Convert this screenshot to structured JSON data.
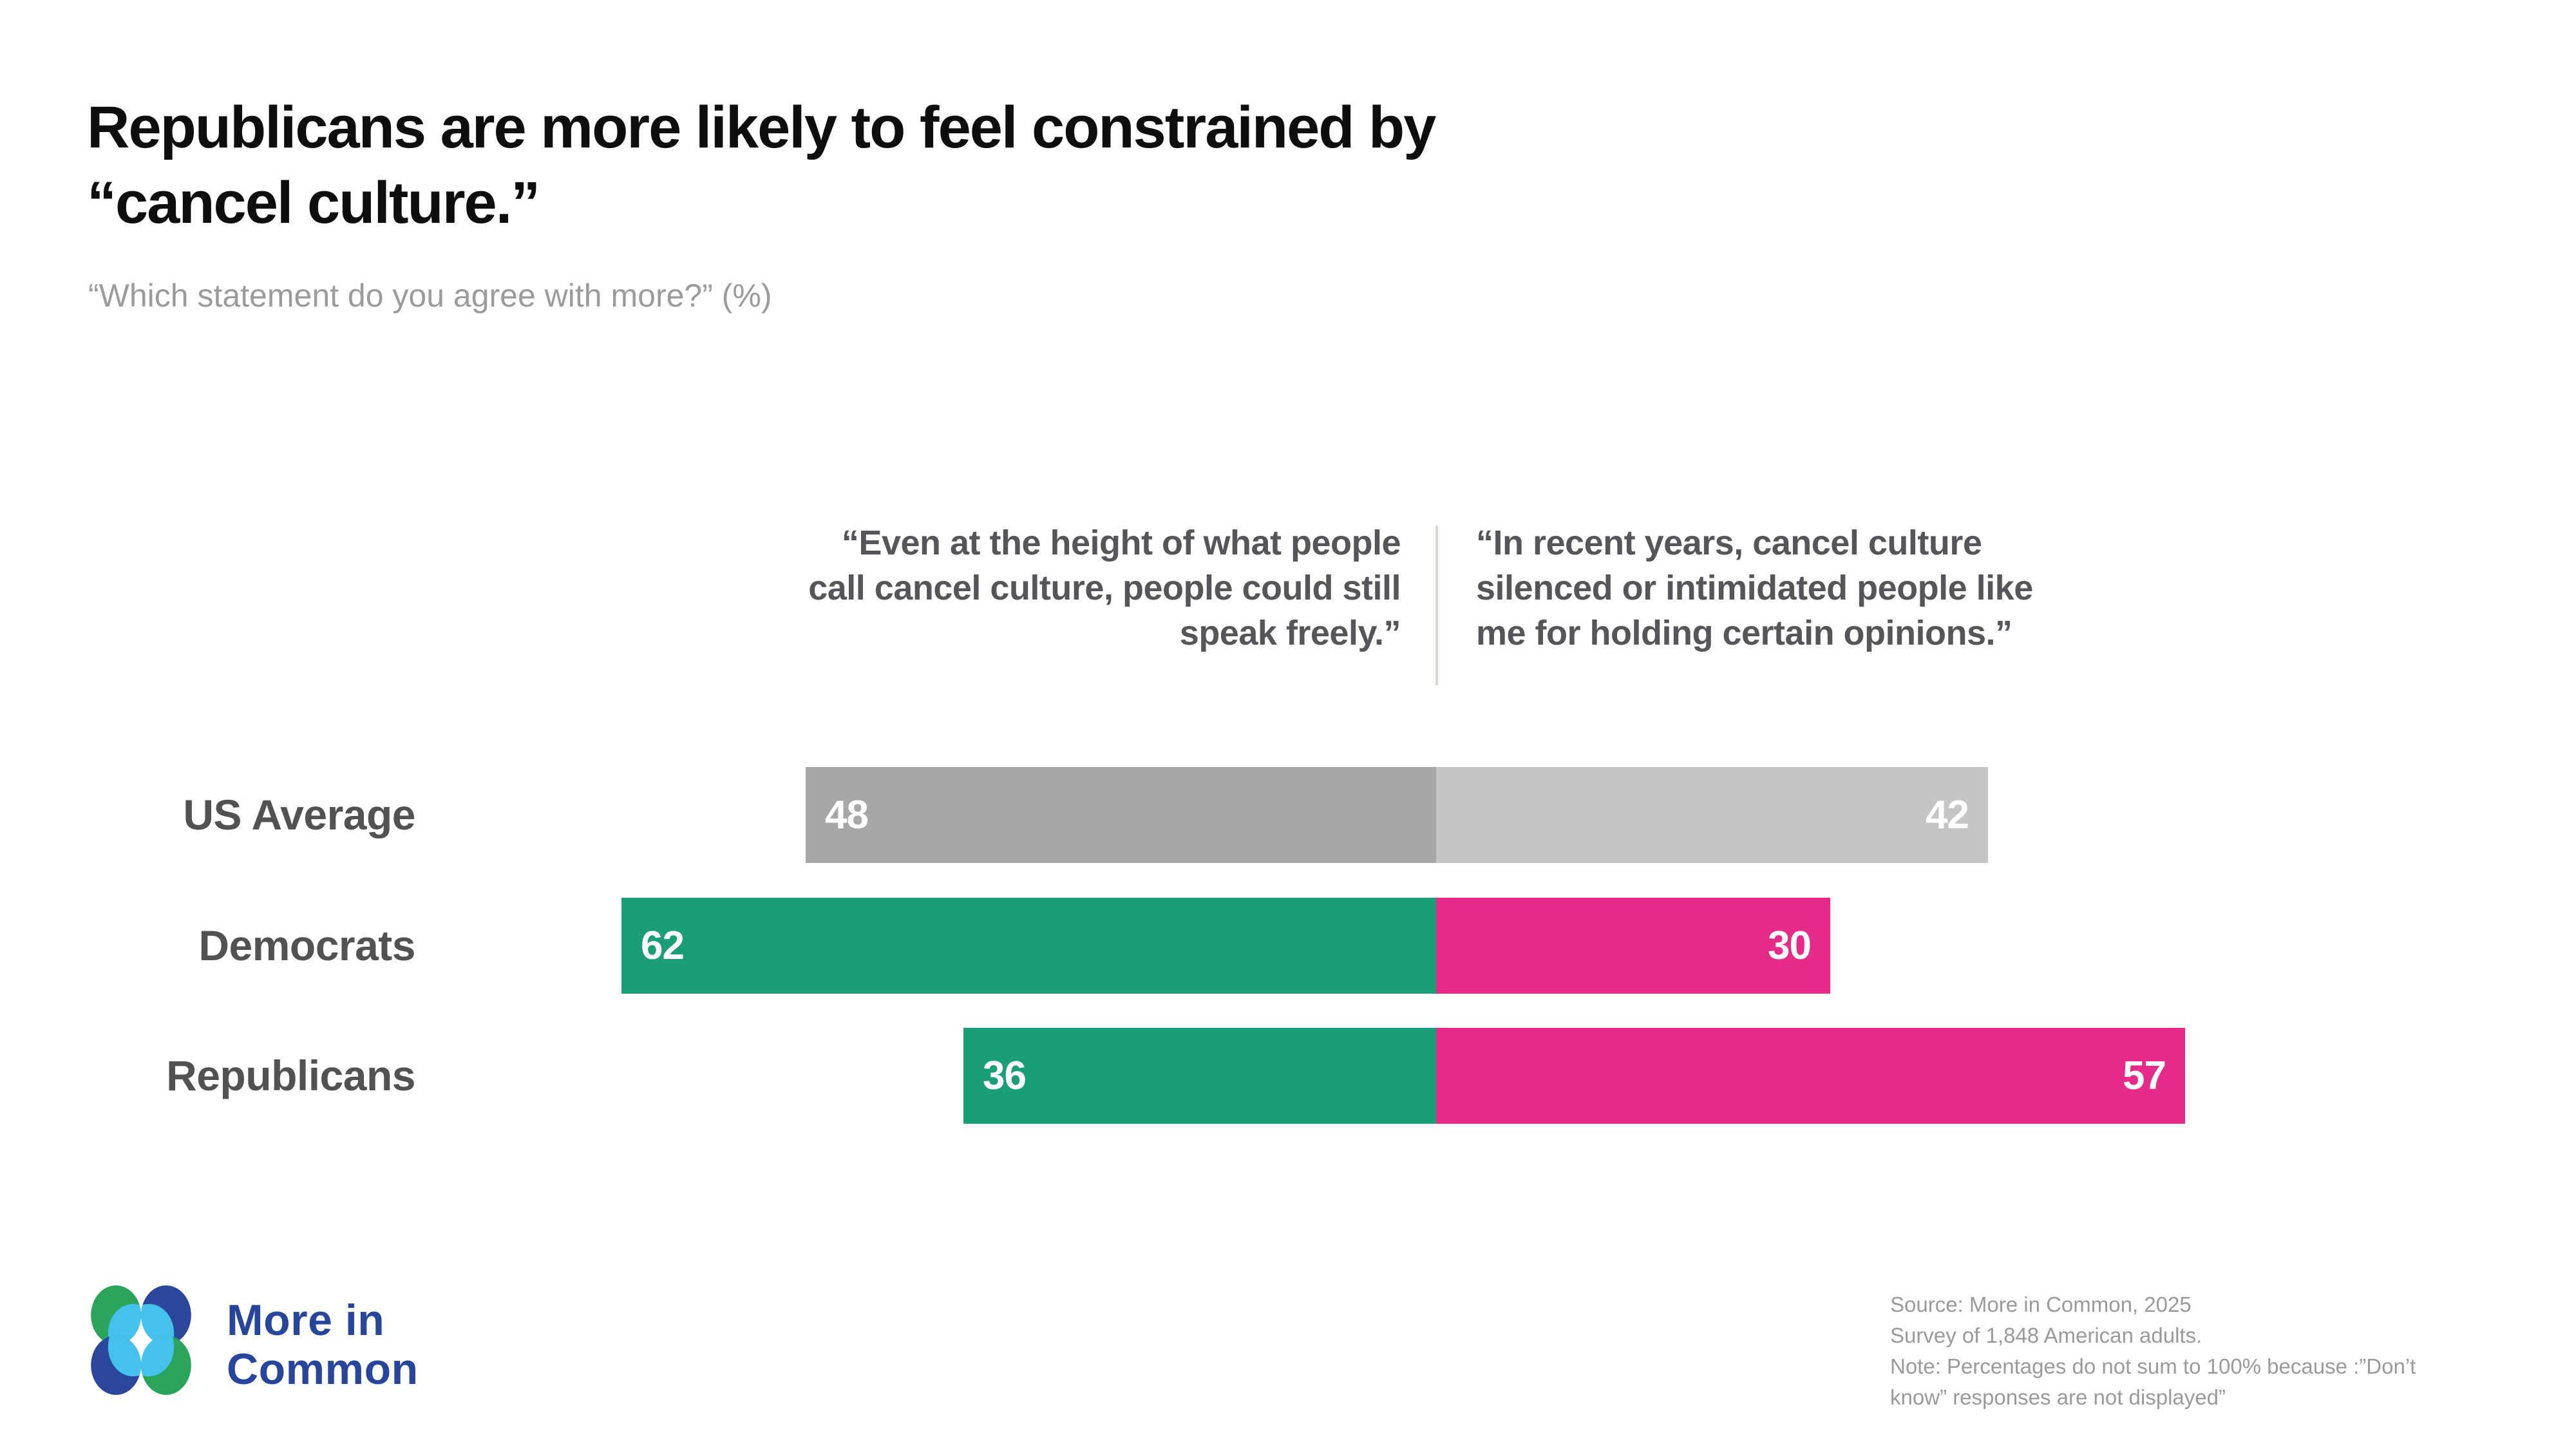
{
  "title": "Republicans are more likely to feel constrained by\n“cancel culture.”",
  "subtitle": "“Which statement do you agree with more?” (%)",
  "columns": {
    "left_statement": "“Even at the height of what people\ncall cancel culture, people could still\nspeak freely.”",
    "right_statement": "“In recent years, cancel culture\nsilenced or intimidated people like\nme for holding certain opinions.”"
  },
  "chart_data": {
    "type": "bar",
    "subtype": "diverging-horizontal",
    "title": "Republicans are more likely to feel constrained by “cancel culture.”",
    "question": "Which statement do you agree with more?",
    "unit": "%",
    "categories": [
      "US Average",
      "Democrats",
      "Republicans"
    ],
    "series": [
      {
        "name": "Even at the height of what people call cancel culture, people could still speak freely.",
        "side": "left",
        "values": [
          48,
          62,
          36
        ],
        "colors": [
          "#a7a7a9",
          "#1b9e77",
          "#1b9e77"
        ]
      },
      {
        "name": "In recent years, cancel culture silenced or intimidated people like me for holding certain opinions.",
        "side": "right",
        "values": [
          42,
          30,
          57
        ],
        "colors": [
          "#c5c5c7",
          "#e62a88",
          "#e62a88"
        ]
      }
    ],
    "value_labels": "inside-bar-ends",
    "grid": false,
    "legend_position": "column-headers-above-chart"
  },
  "colors": {
    "green": "#1b9e77",
    "pink": "#e62a88",
    "gray_dark": "#a7a7a9",
    "gray_light": "#c5c5c7",
    "divider": "#d9d6cb",
    "logo_blue": "#2b479c",
    "logo_green": "#2aa45b",
    "logo_cyan": "#45c2ec",
    "logo_text": "#26459b"
  },
  "branding": {
    "logo_text": "More in\nCommon"
  },
  "footnote": "Source: More in Common, 2025\nSurvey of 1,848 American adults.\nNote: Percentages do not sum to 100% because :”Don’t\nknow” responses are not displayed”"
}
